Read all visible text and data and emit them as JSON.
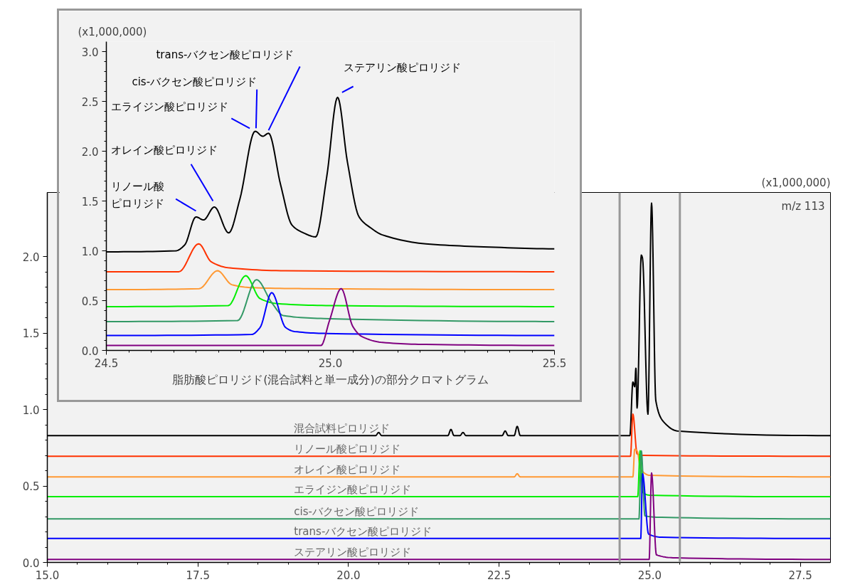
{
  "chart_data": [
    {
      "type": "line",
      "ylabel": "(x1,000,000)",
      "annotations": [
        "m/z 113"
      ],
      "xlim": [
        15,
        28
      ],
      "ylim": [
        0,
        2.42
      ],
      "xticks": [
        {
          "value": 15,
          "label": "15.0"
        },
        {
          "value": 17.5,
          "label": "17.5"
        },
        {
          "value": 20,
          "label": "20.0"
        },
        {
          "value": 22.5,
          "label": "22.5"
        },
        {
          "value": 25,
          "label": "25.0"
        },
        {
          "value": 27.5,
          "label": "27.5"
        }
      ],
      "yticks": [
        {
          "value": 0,
          "label": "0.0"
        },
        {
          "value": 0.5,
          "label": "0.5"
        },
        {
          "value": 1,
          "label": "1.0"
        },
        {
          "value": 1.5,
          "label": "1.5"
        },
        {
          "value": 2,
          "label": "2.0"
        }
      ],
      "grid": false,
      "marker": "none",
      "line_style": "solid",
      "ref_lines": [
        {
          "axis": "x",
          "value": 24.5,
          "color": "#999999"
        },
        {
          "axis": "x",
          "value": 25.5,
          "color": "#999999"
        }
      ],
      "series": [
        {
          "name": "混合試料ピロリジド",
          "color": "#000000",
          "x": [
            15,
            20.45,
            20.5,
            20.55,
            21.65,
            21.7,
            21.75,
            21.85,
            21.9,
            21.95,
            22.55,
            22.6,
            22.65,
            22.75,
            22.8,
            22.85,
            24.5,
            24.67,
            24.72,
            24.75,
            24.77,
            24.79,
            24.86,
            24.88,
            24.97,
            25.03,
            25.1,
            25.23,
            25.46,
            28
          ],
          "values": [
            0.83,
            0.83,
            0.85,
            0.83,
            0.83,
            0.87,
            0.83,
            0.83,
            0.85,
            0.83,
            0.83,
            0.86,
            0.83,
            0.83,
            0.89,
            0.83,
            0.83,
            0.83,
            1.18,
            1.15,
            1.27,
            1.01,
            2.01,
            1.99,
            0.97,
            2.35,
            1.06,
            0.92,
            0.86,
            0.83
          ]
        },
        {
          "name": "リノール酸ピロリジド",
          "color": "#ff3300",
          "x": [
            15,
            24.68,
            24.72,
            24.79,
            24.9,
            28
          ],
          "values": [
            0.695,
            0.695,
            0.97,
            0.71,
            0.7,
            0.695
          ]
        },
        {
          "name": "オレイン酸ピロリジド",
          "color": "#ff9933",
          "x": [
            15,
            22.75,
            22.8,
            22.85,
            24.72,
            24.75,
            24.79,
            24.85,
            25.0,
            28
          ],
          "values": [
            0.56,
            0.56,
            0.58,
            0.56,
            0.56,
            0.74,
            0.73,
            0.61,
            0.57,
            0.56
          ]
        },
        {
          "name": "エライジン酸ピロリジド",
          "color": "#00ee00",
          "x": [
            15,
            24.8,
            24.84,
            24.88,
            25.0,
            28
          ],
          "values": [
            0.43,
            0.43,
            0.73,
            0.46,
            0.44,
            0.43
          ]
        },
        {
          "name": "cis-バクセン酸ピロリジド",
          "color": "#339966",
          "x": [
            15,
            24.82,
            24.86,
            24.92,
            25.2,
            28
          ],
          "values": [
            0.285,
            0.285,
            0.73,
            0.305,
            0.295,
            0.285
          ]
        },
        {
          "name": "trans-バクセン酸ピロリジド",
          "color": "#0000ff",
          "x": [
            15,
            24.85,
            24.88,
            24.98,
            25.2,
            28
          ],
          "values": [
            0.157,
            0.157,
            0.58,
            0.186,
            0.165,
            0.157
          ]
        },
        {
          "name": "ステアリン酸ピロリジド",
          "color": "#800080",
          "x": [
            15,
            24.99,
            25.03,
            25.11,
            25.44,
            28
          ],
          "values": [
            0.02,
            0.02,
            0.585,
            0.05,
            0.03,
            0.02
          ]
        }
      ]
    },
    {
      "type": "line",
      "ylabel": "(x1,000,000)",
      "xlabel": "脂肪酸ピロリジド(混合試料と単一成分)の部分クロマトグラム",
      "xlim": [
        24.5,
        25.5
      ],
      "ylim": [
        0,
        3.1
      ],
      "xticks": [
        {
          "value": 24.5,
          "label": "24.5"
        },
        {
          "value": 25,
          "label": "25.0"
        },
        {
          "value": 25.5,
          "label": "25.5"
        }
      ],
      "yticks": [
        {
          "value": 0,
          "label": "0.0"
        },
        {
          "value": 0.5,
          "label": "0.5"
        },
        {
          "value": 1,
          "label": "1.0"
        },
        {
          "value": 1.5,
          "label": "1.5"
        },
        {
          "value": 2,
          "label": "2.0"
        },
        {
          "value": 2.5,
          "label": "2.5"
        },
        {
          "value": 3,
          "label": "3.0"
        }
      ],
      "grid": false,
      "marker": "none",
      "line_style": "solid",
      "annotations": [
        {
          "text": "リノール酸ピロリジド",
          "x": 24.7,
          "y": 1.34
        },
        {
          "text": "オレイン酸ピロリジド",
          "x": 24.741,
          "y": 1.44
        },
        {
          "text": "エライジン酸ピロリジド",
          "x": 24.832,
          "y": 2.2
        },
        {
          "text": "cis-バクセン酸ピロリジド",
          "x": 24.832,
          "y": 2.2
        },
        {
          "text": "trans-バクセン酸ピロリジド",
          "x": 24.862,
          "y": 2.18
        },
        {
          "text": "ステアリン酸ピロリジド",
          "x": 25.016,
          "y": 2.54
        }
      ],
      "series": [
        {
          "color": "#000000",
          "x": [
            24.5,
            24.655,
            24.675,
            24.7,
            24.717,
            24.741,
            24.773,
            24.798,
            24.832,
            24.849,
            24.862,
            24.889,
            24.914,
            24.94,
            24.967,
            24.992,
            25.016,
            25.038,
            25.064,
            25.09,
            25.116,
            25.213,
            25.342,
            25.5
          ],
          "values": [
            0.99,
            1.0,
            1.06,
            1.34,
            1.31,
            1.44,
            1.18,
            1.52,
            2.2,
            2.15,
            2.18,
            1.66,
            1.26,
            1.18,
            1.14,
            1.75,
            2.54,
            1.89,
            1.34,
            1.23,
            1.16,
            1.07,
            1.04,
            1.02
          ]
        },
        {
          "color": "#ff3300",
          "x": [
            24.5,
            24.662,
            24.706,
            24.734,
            24.772,
            24.9,
            25.5
          ],
          "values": [
            0.79,
            0.79,
            1.07,
            0.89,
            0.83,
            0.8,
            0.79
          ]
        },
        {
          "color": "#ff9933",
          "x": [
            24.5,
            24.707,
            24.748,
            24.78,
            24.824,
            24.95,
            25.5
          ],
          "values": [
            0.61,
            0.62,
            0.8,
            0.66,
            0.63,
            0.62,
            0.61
          ]
        },
        {
          "color": "#00ee00",
          "x": [
            24.5,
            24.772,
            24.811,
            24.843,
            24.882,
            25.0,
            25.5
          ],
          "values": [
            0.44,
            0.45,
            0.75,
            0.52,
            0.47,
            0.45,
            0.44
          ]
        },
        {
          "color": "#339966",
          "x": [
            24.5,
            24.793,
            24.835,
            24.869,
            24.895,
            24.986,
            25.5
          ],
          "values": [
            0.29,
            0.3,
            0.71,
            0.48,
            0.35,
            0.32,
            0.29
          ]
        },
        {
          "color": "#0000ff",
          "x": [
            24.5,
            24.824,
            24.843,
            24.869,
            24.9,
            24.92,
            24.992,
            25.5
          ],
          "values": [
            0.15,
            0.16,
            0.23,
            0.58,
            0.23,
            0.19,
            0.17,
            0.15
          ]
        },
        {
          "color": "#800080",
          "x": [
            24.5,
            24.979,
            24.998,
            25.024,
            25.05,
            25.07,
            25.116,
            25.213,
            25.5
          ],
          "values": [
            0.05,
            0.05,
            0.3,
            0.62,
            0.24,
            0.14,
            0.08,
            0.06,
            0.05
          ]
        }
      ]
    }
  ]
}
